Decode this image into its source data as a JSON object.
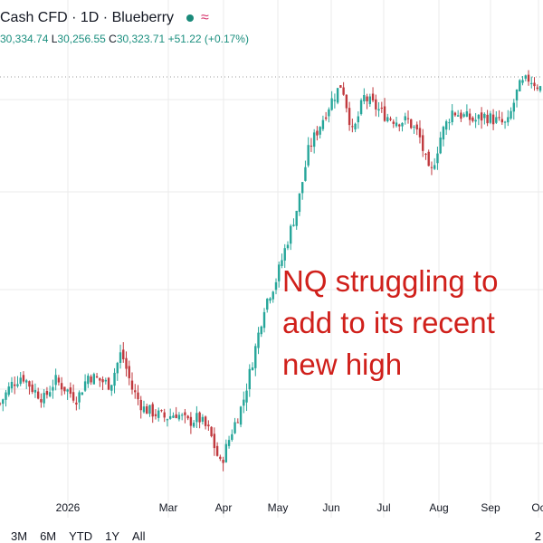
{
  "header": {
    "symbol_label": "Cash CFD · 1D · Blueberry",
    "status_icon": "market-open-dot-icon",
    "indicator_icon": "wave-icon",
    "indicator_glyph": "≈",
    "ohlc": {
      "open": "30,334.74",
      "low_key": "L",
      "low": "30,256.55",
      "close_key": "C",
      "close": "30,323.71",
      "change": "+51.22 (+0.17%)"
    }
  },
  "annotation": {
    "text": "NQ struggling to add to its recent new high",
    "color": "#d0201b"
  },
  "range_buttons": [
    "3M",
    "6M",
    "YTD",
    "1Y",
    "All"
  ],
  "corner_label": "2",
  "colors": {
    "up": "#26a69a",
    "down": "#c0393e",
    "grid": "#ebebeb",
    "last_price_line": "#9e9e9e"
  },
  "chart_data": {
    "type": "candlestick",
    "x_tick_labels": [
      "2026",
      "Mar",
      "Apr",
      "May",
      "Jun",
      "Jul",
      "Aug",
      "Sep",
      "Oc"
    ],
    "grid": true,
    "close_series": [
      {
        "x": "Nov 28",
        "close": 25900
      },
      {
        "x": "Dec 3",
        "close": 26100
      },
      {
        "x": "Dec 8",
        "close": 26200
      },
      {
        "x": "Dec 12",
        "close": 26050
      },
      {
        "x": "Dec 17",
        "close": 25950
      },
      {
        "x": "Dec 22",
        "close": 26150
      },
      {
        "x": "Dec 29",
        "close": 26050
      },
      {
        "x": "Jan 2",
        "close": 25950
      },
      {
        "x": "Jan 9",
        "close": 26200
      },
      {
        "x": "Jan 16",
        "close": 26150
      },
      {
        "x": "Jan 23",
        "close": 26100
      },
      {
        "x": "Jan 30",
        "close": 26450
      },
      {
        "x": "Feb 4",
        "close": 26050
      },
      {
        "x": "Feb 11",
        "close": 25850
      },
      {
        "x": "Feb 18",
        "close": 25800
      },
      {
        "x": "Feb 25",
        "close": 25750
      },
      {
        "x": "Mar 4",
        "close": 25800
      },
      {
        "x": "Mar 11",
        "close": 25700
      },
      {
        "x": "Mar 18",
        "close": 25750
      },
      {
        "x": "Mar 23",
        "close": 25600
      },
      {
        "x": "Mar 27",
        "close": 25250
      },
      {
        "x": "Apr 1",
        "close": 25600
      },
      {
        "x": "Apr 7",
        "close": 25900
      },
      {
        "x": "Apr 14",
        "close": 26400
      },
      {
        "x": "Apr 21",
        "close": 26950
      },
      {
        "x": "Apr 28",
        "close": 27200
      },
      {
        "x": "May 5",
        "close": 27600
      },
      {
        "x": "May 12",
        "close": 28000
      },
      {
        "x": "May 19",
        "close": 28600
      },
      {
        "x": "May 26",
        "close": 28850
      },
      {
        "x": "Jun 2",
        "close": 29100
      },
      {
        "x": "Jun 6",
        "close": 29300
      },
      {
        "x": "Jun 10",
        "close": 28750
      },
      {
        "x": "Jun 16",
        "close": 29150
      },
      {
        "x": "Jun 23",
        "close": 29050
      },
      {
        "x": "Jun 30",
        "close": 28950
      },
      {
        "x": "Jul 7",
        "close": 28900
      },
      {
        "x": "Jul 14",
        "close": 28900
      },
      {
        "x": "Jul 21",
        "close": 28750
      },
      {
        "x": "Jul 28",
        "close": 28300
      },
      {
        "x": "Aug 4",
        "close": 28750
      },
      {
        "x": "Aug 11",
        "close": 29000
      },
      {
        "x": "Aug 18",
        "close": 28950
      },
      {
        "x": "Aug 25",
        "close": 28900
      },
      {
        "x": "Sep 1",
        "close": 28950
      },
      {
        "x": "Sep 8",
        "close": 28900
      },
      {
        "x": "Sep 15",
        "close": 28850
      },
      {
        "x": "Sep 22",
        "close": 29250
      },
      {
        "x": "Sep 26",
        "close": 29350
      },
      {
        "x": "Oct 1",
        "close": 29250
      }
    ]
  }
}
